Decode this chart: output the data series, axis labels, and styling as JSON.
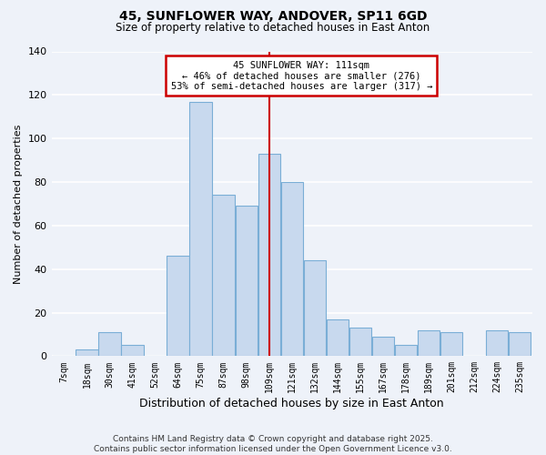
{
  "title": "45, SUNFLOWER WAY, ANDOVER, SP11 6GD",
  "subtitle": "Size of property relative to detached houses in East Anton",
  "xlabel": "Distribution of detached houses by size in East Anton",
  "ylabel": "Number of detached properties",
  "bar_color": "#c8d9ee",
  "bar_edgecolor": "#7aaed6",
  "background_color": "#eef2f9",
  "grid_color": "#ffffff",
  "vline_color": "#cc0000",
  "categories": [
    "7sqm",
    "18sqm",
    "30sqm",
    "41sqm",
    "52sqm",
    "64sqm",
    "75sqm",
    "87sqm",
    "98sqm",
    "109sqm",
    "121sqm",
    "132sqm",
    "144sqm",
    "155sqm",
    "167sqm",
    "178sqm",
    "189sqm",
    "201sqm",
    "212sqm",
    "224sqm",
    "235sqm"
  ],
  "values": [
    0,
    3,
    11,
    5,
    0,
    46,
    117,
    74,
    69,
    93,
    80,
    44,
    17,
    13,
    9,
    5,
    12,
    11,
    0,
    12,
    11
  ],
  "ylim": [
    0,
    140
  ],
  "yticks": [
    0,
    20,
    40,
    60,
    80,
    100,
    120,
    140
  ],
  "vline_index": 9,
  "annotation_title": "45 SUNFLOWER WAY: 111sqm",
  "annotation_line1": "← 46% of detached houses are smaller (276)",
  "annotation_line2": "53% of semi-detached houses are larger (317) →",
  "annotation_box_facecolor": "#ffffff",
  "annotation_box_edgecolor": "#cc0000",
  "footnote1": "Contains HM Land Registry data © Crown copyright and database right 2025.",
  "footnote2": "Contains public sector information licensed under the Open Government Licence v3.0."
}
